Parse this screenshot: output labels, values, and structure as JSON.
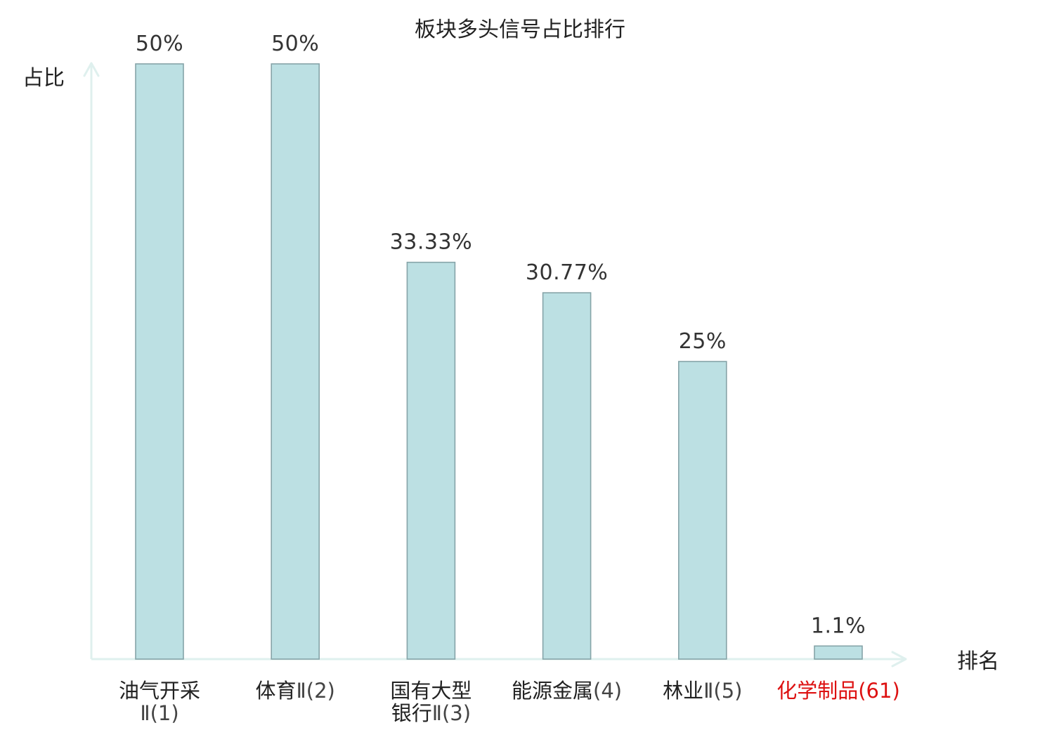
{
  "chart_data": {
    "type": "bar",
    "title": "板块多头信号占比排行",
    "ylabel": "占比",
    "xlabel": "排名",
    "ylim": [
      0,
      50
    ],
    "grid": false,
    "legend": "none",
    "categories": [
      {
        "lines": [
          "油气开采",
          "Ⅱ(1)"
        ],
        "highlight": false
      },
      {
        "lines": [
          "体育Ⅱ(2)"
        ],
        "highlight": false
      },
      {
        "lines": [
          "国有大型",
          "银行Ⅱ(3)"
        ],
        "highlight": false
      },
      {
        "lines": [
          "能源金属(4)"
        ],
        "highlight": false
      },
      {
        "lines": [
          "林业Ⅱ(5)"
        ],
        "highlight": false
      },
      {
        "lines": [
          "化学制品(61)"
        ],
        "highlight": true
      }
    ],
    "values": [
      50,
      50,
      33.33,
      30.77,
      25,
      1.1
    ],
    "value_labels": [
      "50%",
      "50%",
      "33.33%",
      "30.77%",
      "25%",
      "1.1%"
    ],
    "colors": {
      "bar_fill": "#bce0e3",
      "bar_stroke": "#86a4a8",
      "axis": "#dff0ee",
      "highlight_text": "#dd1111",
      "text": "#222222"
    }
  }
}
